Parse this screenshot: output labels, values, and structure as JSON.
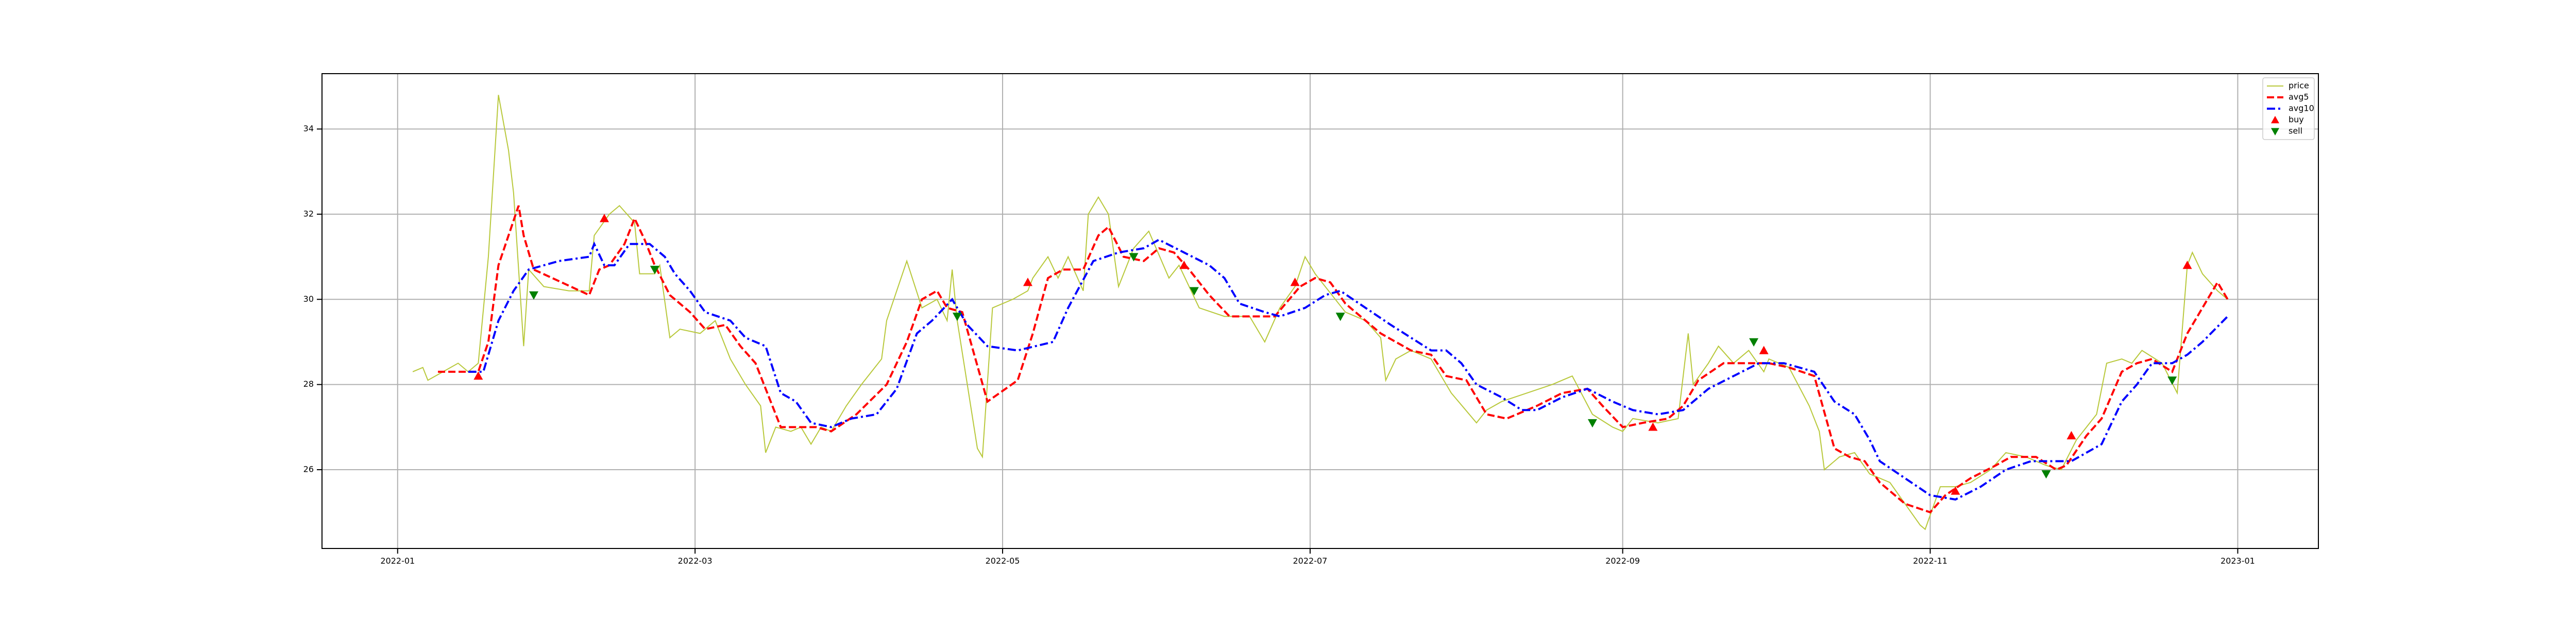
{
  "chart_data": {
    "type": "line",
    "xlim": [
      -15,
      381
    ],
    "ylim": [
      24.15,
      35.3
    ],
    "xticks": [
      {
        "value": 0,
        "label": "2022-01"
      },
      {
        "value": 59,
        "label": "2022-03"
      },
      {
        "value": 120,
        "label": "2022-05"
      },
      {
        "value": 181,
        "label": "2022-07"
      },
      {
        "value": 243,
        "label": "2022-09"
      },
      {
        "value": 304,
        "label": "2022-11"
      },
      {
        "value": 365,
        "label": "2023-01"
      }
    ],
    "yticks": [
      26,
      28,
      30,
      32,
      34
    ],
    "grid": true,
    "legend": "upper right",
    "series": [
      {
        "name": "price",
        "color": "#b8c83a",
        "linestyle": "solid",
        "x": [
          3,
          5,
          6,
          9,
          12,
          14,
          16,
          18,
          20,
          22,
          23,
          25,
          26,
          29,
          34,
          38,
          39,
          42,
          44,
          47,
          48,
          51,
          52,
          54,
          56,
          60,
          63,
          66,
          69,
          72,
          73,
          75,
          78,
          80,
          82,
          84,
          86,
          89,
          92,
          96,
          97,
          101,
          104,
          107,
          109,
          110,
          111,
          113,
          115,
          116,
          118,
          122,
          125,
          126,
          129,
          131,
          133,
          136,
          137,
          139,
          141,
          143,
          146,
          149,
          153,
          155,
          159,
          164,
          169,
          172,
          175,
          178,
          180,
          182,
          184,
          188,
          192,
          195,
          196,
          198,
          201,
          205,
          207,
          209,
          214,
          216,
          219,
          224,
          229,
          233,
          237,
          241,
          243,
          245,
          250,
          254,
          256,
          257,
          260,
          262,
          265,
          268,
          271,
          272,
          276,
          280,
          282,
          283,
          286,
          289,
          292,
          296,
          299,
          302,
          303,
          306,
          309,
          312,
          316,
          319,
          323,
          327,
          330,
          333,
          335,
          337,
          339,
          342,
          344,
          346,
          350,
          353,
          355,
          356,
          358,
          361,
          363
        ],
        "values": [
          28.3,
          28.4,
          28.1,
          28.3,
          28.5,
          28.3,
          28.5,
          31.0,
          34.8,
          33.5,
          32.5,
          28.9,
          30.7,
          30.3,
          30.2,
          30.2,
          31.5,
          32.0,
          32.2,
          31.8,
          30.6,
          30.6,
          30.8,
          29.1,
          29.3,
          29.2,
          29.5,
          28.6,
          28.0,
          27.5,
          26.4,
          27.0,
          26.9,
          27.0,
          26.6,
          27.0,
          26.9,
          27.5,
          28.0,
          28.6,
          29.5,
          30.9,
          29.8,
          30.0,
          29.5,
          30.7,
          29.5,
          28.0,
          26.5,
          26.3,
          29.8,
          30.0,
          30.2,
          30.5,
          31.0,
          30.5,
          31.0,
          30.2,
          32.0,
          32.4,
          32.0,
          30.3,
          31.2,
          31.6,
          30.5,
          30.8,
          29.8,
          29.6,
          29.6,
          29.0,
          29.8,
          30.3,
          31.0,
          30.6,
          30.3,
          29.7,
          29.5,
          29.1,
          28.1,
          28.6,
          28.8,
          28.6,
          28.2,
          27.8,
          27.1,
          27.4,
          27.6,
          27.8,
          28.0,
          28.2,
          27.3,
          27.0,
          26.9,
          27.2,
          27.1,
          27.2,
          29.2,
          28.0,
          28.5,
          28.9,
          28.5,
          28.8,
          28.3,
          28.6,
          28.4,
          27.5,
          26.9,
          26.0,
          26.3,
          26.4,
          25.9,
          25.7,
          25.2,
          24.7,
          24.6,
          25.6,
          25.6,
          25.7,
          26.0,
          26.4,
          26.3,
          26.1,
          26.0,
          26.7,
          27.0,
          27.3,
          28.5,
          28.6,
          28.5,
          28.8,
          28.5,
          27.8,
          30.8,
          31.1,
          30.6,
          30.2,
          30.0
        ]
      },
      {
        "name": "avg5",
        "color": "#ff0000",
        "linestyle": "dashed",
        "x": [
          8,
          16,
          18,
          20,
          24,
          25,
          27,
          38,
          40,
          42,
          45,
          47,
          49,
          51,
          54,
          58,
          61,
          65,
          68,
          71,
          74,
          76,
          79,
          83,
          86,
          91,
          97,
          101,
          104,
          107,
          109,
          112,
          117,
          123,
          126,
          129,
          132,
          136,
          139,
          141,
          144,
          148,
          151,
          154,
          157,
          161,
          165,
          169,
          174,
          179,
          182,
          185,
          188,
          195,
          201,
          205,
          208,
          212,
          216,
          220,
          226,
          231,
          236,
          239,
          243,
          247,
          252,
          255,
          258,
          263,
          267,
          272,
          276,
          281,
          285,
          288,
          291,
          294,
          299,
          304,
          307,
          312,
          317,
          320,
          325,
          329,
          331,
          335,
          338,
          342,
          345,
          348,
          352,
          355,
          358,
          361,
          363
        ],
        "values": [
          28.3,
          28.3,
          29.0,
          30.8,
          32.2,
          31.5,
          30.7,
          30.1,
          30.7,
          30.8,
          31.3,
          31.9,
          31.4,
          30.8,
          30.1,
          29.7,
          29.3,
          29.4,
          28.9,
          28.5,
          27.6,
          27.0,
          27.0,
          27.0,
          26.9,
          27.3,
          28.0,
          29.0,
          30.0,
          30.2,
          29.8,
          29.7,
          27.6,
          28.1,
          29.2,
          30.5,
          30.7,
          30.7,
          31.5,
          31.7,
          31.0,
          30.9,
          31.2,
          31.1,
          30.7,
          30.1,
          29.6,
          29.6,
          29.6,
          30.3,
          30.5,
          30.4,
          29.9,
          29.2,
          28.8,
          28.7,
          28.2,
          28.1,
          27.3,
          27.2,
          27.5,
          27.8,
          27.9,
          27.5,
          27.0,
          27.1,
          27.2,
          27.5,
          28.1,
          28.5,
          28.5,
          28.5,
          28.4,
          28.2,
          26.5,
          26.3,
          26.2,
          25.7,
          25.2,
          25.0,
          25.4,
          25.8,
          26.1,
          26.3,
          26.3,
          26.0,
          26.1,
          26.8,
          27.2,
          28.3,
          28.5,
          28.6,
          28.3,
          29.2,
          29.8,
          30.4,
          30.0
        ]
      },
      {
        "name": "avg10",
        "color": "#0000ff",
        "linestyle": "dashdot",
        "x": [
          14,
          17,
          20,
          23,
          26,
          32,
          38,
          39,
          41,
          43,
          46,
          50,
          53,
          55,
          58,
          61,
          66,
          69,
          73,
          76,
          79,
          82,
          86,
          90,
          95,
          99,
          103,
          106,
          110,
          113,
          117,
          123,
          130,
          133,
          138,
          143,
          148,
          151,
          156,
          161,
          164,
          167,
          172,
          175,
          180,
          184,
          187,
          192,
          197,
          201,
          205,
          208,
          211,
          214,
          219,
          223,
          226,
          231,
          236,
          241,
          245,
          250,
          255,
          260,
          265,
          270,
          275,
          281,
          285,
          289,
          292,
          294,
          299,
          304,
          309,
          314,
          319,
          324,
          329,
          332,
          338,
          342,
          345,
          348,
          352,
          355,
          358,
          363
        ],
        "values": [
          28.3,
          28.3,
          29.5,
          30.2,
          30.7,
          30.9,
          31.0,
          31.3,
          30.8,
          30.8,
          31.3,
          31.3,
          31.0,
          30.6,
          30.2,
          29.7,
          29.5,
          29.1,
          28.9,
          27.8,
          27.6,
          27.1,
          27.0,
          27.2,
          27.3,
          27.9,
          29.2,
          29.5,
          30.0,
          29.4,
          28.9,
          28.8,
          29.0,
          29.8,
          30.9,
          31.1,
          31.2,
          31.4,
          31.1,
          30.8,
          30.5,
          29.9,
          29.7,
          29.6,
          29.8,
          30.1,
          30.2,
          29.8,
          29.4,
          29.1,
          28.8,
          28.8,
          28.5,
          28.0,
          27.7,
          27.4,
          27.4,
          27.7,
          27.9,
          27.6,
          27.4,
          27.3,
          27.4,
          27.9,
          28.2,
          28.5,
          28.5,
          28.3,
          27.6,
          27.3,
          26.7,
          26.2,
          25.8,
          25.4,
          25.3,
          25.6,
          26.0,
          26.2,
          26.2,
          26.2,
          26.6,
          27.6,
          28.0,
          28.5,
          28.5,
          28.7,
          29.0,
          29.6
        ]
      },
      {
        "name": "buy",
        "color": "#ff0000",
        "marker": "triangle-up",
        "x": [
          16,
          41,
          125,
          156,
          178,
          249,
          271,
          309,
          332,
          355
        ],
        "values": [
          28.2,
          31.9,
          30.4,
          30.8,
          30.4,
          27.0,
          28.8,
          25.5,
          26.8,
          30.8
        ]
      },
      {
        "name": "sell",
        "color": "#008000",
        "marker": "triangle-down",
        "x": [
          27,
          51,
          111,
          146,
          158,
          187,
          237,
          269,
          327,
          352
        ],
        "values": [
          30.1,
          30.7,
          29.6,
          31.0,
          30.2,
          29.6,
          27.1,
          29.0,
          25.9,
          28.1
        ]
      }
    ]
  }
}
